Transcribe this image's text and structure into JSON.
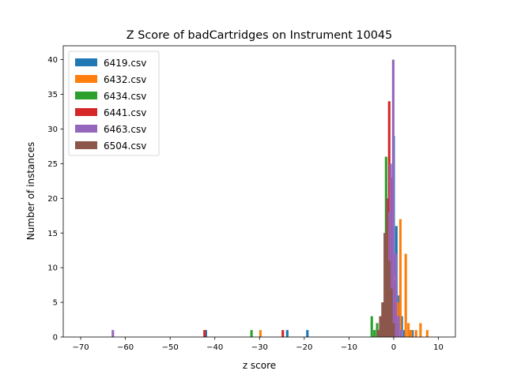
{
  "chart_data": {
    "type": "bar",
    "title": "Z Score of badCartridges on Instrument 10045",
    "xlabel": "z score",
    "ylabel": "Number of instances",
    "xlim": [
      -73.9,
      13.8
    ],
    "ylim": [
      0,
      42
    ],
    "xticks": [
      -70,
      -60,
      -50,
      -40,
      -30,
      -20,
      -10,
      0,
      10
    ],
    "xtick_labels": [
      "−70",
      "−60",
      "−50",
      "−40",
      "−30",
      "−20",
      "−10",
      "0",
      "10"
    ],
    "yticks": [
      0,
      5,
      10,
      15,
      20,
      25,
      30,
      35,
      40
    ],
    "ytick_labels": [
      "0",
      "5",
      "10",
      "15",
      "20",
      "25",
      "30",
      "35",
      "40"
    ],
    "bin_width": 0.55,
    "legend_position": "upper left",
    "series": [
      {
        "name": "6419.csv",
        "color": "#1f77b4",
        "bins": [
          [
            -42.0,
            1
          ],
          [
            -23.8,
            1
          ],
          [
            -19.3,
            1
          ],
          [
            -2.5,
            1
          ],
          [
            -1.8,
            3
          ],
          [
            -1.2,
            12
          ],
          [
            -0.6,
            22
          ],
          [
            0.0,
            29
          ],
          [
            0.6,
            16
          ],
          [
            1.2,
            6
          ],
          [
            1.8,
            3
          ],
          [
            2.4,
            1
          ],
          [
            3.6,
            1
          ],
          [
            4.2,
            1
          ]
        ]
      },
      {
        "name": "6432.csv",
        "color": "#ff7f0e",
        "bins": [
          [
            -29.8,
            1
          ],
          [
            -1.5,
            2
          ],
          [
            -0.9,
            5
          ],
          [
            0.3,
            9
          ],
          [
            0.9,
            5
          ],
          [
            1.5,
            17
          ],
          [
            2.7,
            12
          ],
          [
            3.3,
            2
          ],
          [
            3.9,
            1
          ],
          [
            5.0,
            1
          ],
          [
            6.0,
            2
          ],
          [
            7.5,
            1
          ]
        ]
      },
      {
        "name": "6434.csv",
        "color": "#2ca02c",
        "bins": [
          [
            -31.8,
            1
          ],
          [
            -4.9,
            3
          ],
          [
            -4.3,
            1
          ],
          [
            -3.7,
            2
          ],
          [
            -3.0,
            2
          ],
          [
            -2.4,
            5
          ],
          [
            -1.7,
            26
          ],
          [
            -1.1,
            9
          ],
          [
            -0.5,
            4
          ],
          [
            0.1,
            3
          ],
          [
            0.7,
            2
          ]
        ]
      },
      {
        "name": "6441.csv",
        "color": "#d62728",
        "bins": [
          [
            -42.3,
            1
          ],
          [
            -24.8,
            1
          ],
          [
            -2.0,
            4
          ],
          [
            -1.5,
            14
          ],
          [
            -1.0,
            34
          ],
          [
            -0.5,
            23
          ],
          [
            0.0,
            8
          ],
          [
            0.5,
            3
          ],
          [
            1.0,
            1
          ]
        ]
      },
      {
        "name": "6463.csv",
        "color": "#9467bd",
        "bins": [
          [
            -62.8,
            1
          ],
          [
            -2.5,
            2
          ],
          [
            -1.9,
            1
          ],
          [
            -1.3,
            18
          ],
          [
            -0.7,
            25
          ],
          [
            -0.1,
            40
          ],
          [
            0.5,
            12
          ],
          [
            1.1,
            3
          ],
          [
            1.7,
            1
          ]
        ]
      },
      {
        "name": "6504.csv",
        "color": "#8c564b",
        "bins": [
          [
            -3.5,
            1
          ],
          [
            -3.0,
            3
          ],
          [
            -2.5,
            5
          ],
          [
            -2.0,
            15
          ],
          [
            -1.5,
            20
          ],
          [
            -1.0,
            11
          ],
          [
            -0.5,
            7
          ],
          [
            0.0,
            2
          ]
        ]
      }
    ]
  }
}
